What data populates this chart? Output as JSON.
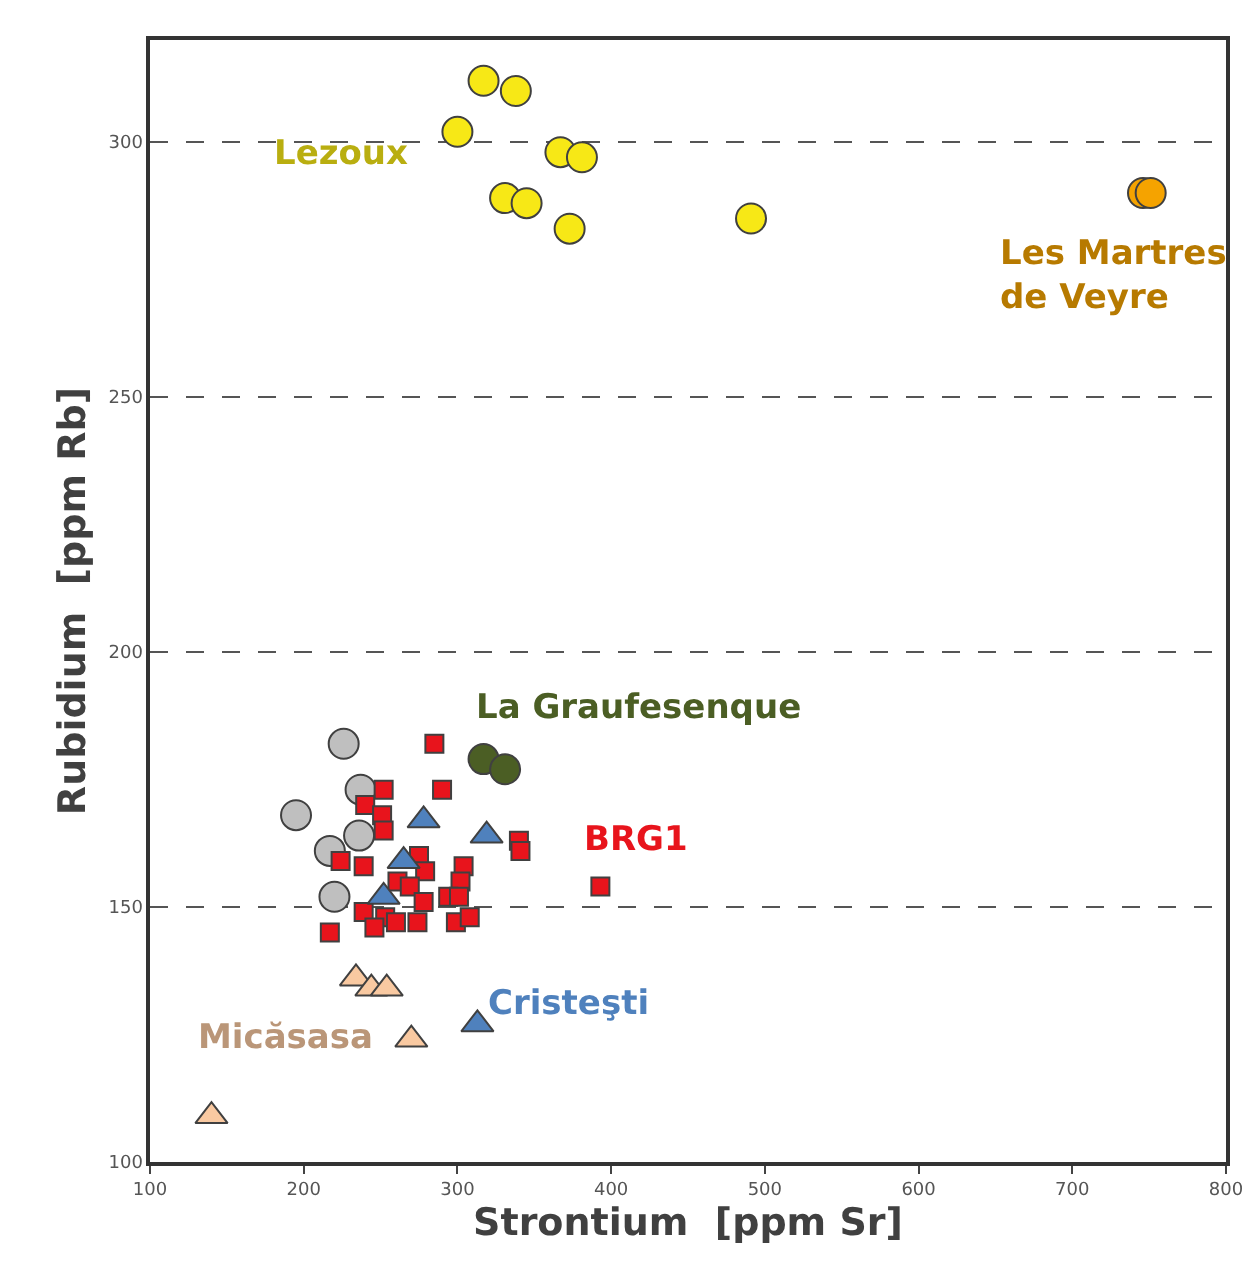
{
  "chart_data": {
    "type": "scatter",
    "xlabel": "Strontium  [ppm Sr]",
    "ylabel": "Rubidium  [ppm Rb]",
    "xlim": [
      100,
      800
    ],
    "xticks": [
      100,
      200,
      300,
      400,
      500,
      600,
      700,
      800
    ],
    "ylim": [
      100,
      320
    ],
    "yticks": [
      100,
      150,
      200,
      250,
      300
    ],
    "grid": "y",
    "legend": false,
    "series": [
      {
        "name": "Lezoux",
        "color": "#f7e816",
        "marker": "circle",
        "x": [
          317,
          338,
          300,
          367,
          381,
          331,
          345,
          373,
          491
        ],
        "values": [
          312,
          310,
          302,
          298,
          297,
          289,
          288,
          283,
          285
        ]
      },
      {
        "name": "Les Martres\nde Veyre",
        "color": "#f5a300",
        "marker": "circle",
        "x": [
          746,
          751
        ],
        "values": [
          290,
          290
        ]
      },
      {
        "color": "#bfbfbf",
        "marker": "circle",
        "x": [
          226,
          237,
          195,
          236,
          217,
          220
        ],
        "values": [
          182,
          173,
          168,
          164,
          161,
          152
        ]
      },
      {
        "name": "BRG1",
        "color": "#e8141c",
        "marker": "square",
        "x": [
          285,
          290,
          252,
          240,
          251,
          252,
          340,
          341,
          224,
          239,
          275,
          279,
          304,
          261,
          269,
          302,
          278,
          294,
          301,
          239,
          253,
          260,
          274,
          246,
          299,
          308,
          217,
          393
        ],
        "values": [
          182,
          173,
          173,
          170,
          168,
          165,
          163,
          161,
          159,
          158,
          160,
          157,
          158,
          155,
          154,
          155,
          151,
          152,
          152,
          149,
          148,
          147,
          147,
          146,
          147,
          148,
          145,
          154
        ]
      },
      {
        "name": "La Graufesenque",
        "color": "#4b5e24",
        "marker": "circle",
        "x": [
          317,
          331
        ],
        "values": [
          179,
          177
        ]
      },
      {
        "name": "Cristeşti",
        "color": "#4f81bd",
        "marker": "triangle",
        "x": [
          278,
          319,
          265,
          252,
          313
        ],
        "values": [
          167,
          164,
          159,
          152,
          127
        ]
      },
      {
        "name": "Micăsasa",
        "color": "#f9c9a1",
        "marker": "triangle",
        "x": [
          234,
          244,
          254,
          270,
          140
        ],
        "values": [
          136,
          134,
          134,
          124,
          109
        ]
      }
    ]
  }
}
